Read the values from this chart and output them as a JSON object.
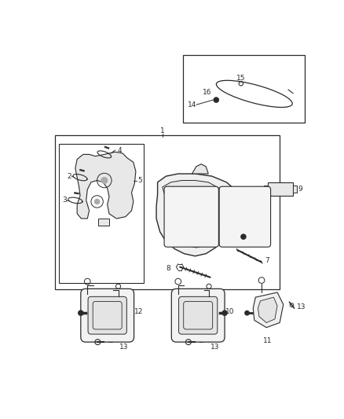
{
  "bg_color": "#ffffff",
  "line_color": "#2a2a2a",
  "fig_width": 4.38,
  "fig_height": 5.33,
  "dpi": 100,
  "font_size": 6.5,
  "font_size_sm": 5.5
}
